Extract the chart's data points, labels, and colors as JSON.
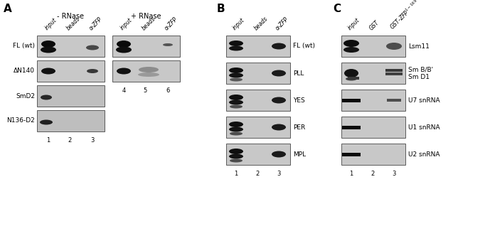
{
  "fig_width": 6.89,
  "fig_height": 3.18,
  "bg_color": "#ffffff",
  "panel_A": {
    "label": "A",
    "minus_rnase": "- RNase",
    "plus_rnase": "+ RNase",
    "col_labels": [
      "input",
      "beads",
      "α-ZFP"
    ],
    "row_labels_left": [
      "FL (wt)",
      "ΔN140",
      "SmD2",
      "N136-D2"
    ],
    "lane_nums_left": [
      "1",
      "2",
      "3"
    ],
    "lane_nums_right": [
      "4",
      "5",
      "6"
    ]
  },
  "panel_B": {
    "label": "B",
    "col_labels": [
      "input",
      "beads",
      "α-ZFP"
    ],
    "row_labels": [
      "FL (wt)",
      "PLL",
      "YES",
      "PER",
      "MPL"
    ],
    "lane_nums": [
      "1",
      "2",
      "3"
    ]
  },
  "panel_C": {
    "label": "C",
    "col_labels": [
      "input",
      "GST",
      "GST-ZFP$^{1-169}$"
    ],
    "row_labels": [
      "Lsm11",
      "Sm B/B'\nSm D1",
      "U7 snRNA",
      "U1 snRNA",
      "U2 snRNA"
    ],
    "lane_nums": [
      "1",
      "2",
      "3"
    ]
  }
}
